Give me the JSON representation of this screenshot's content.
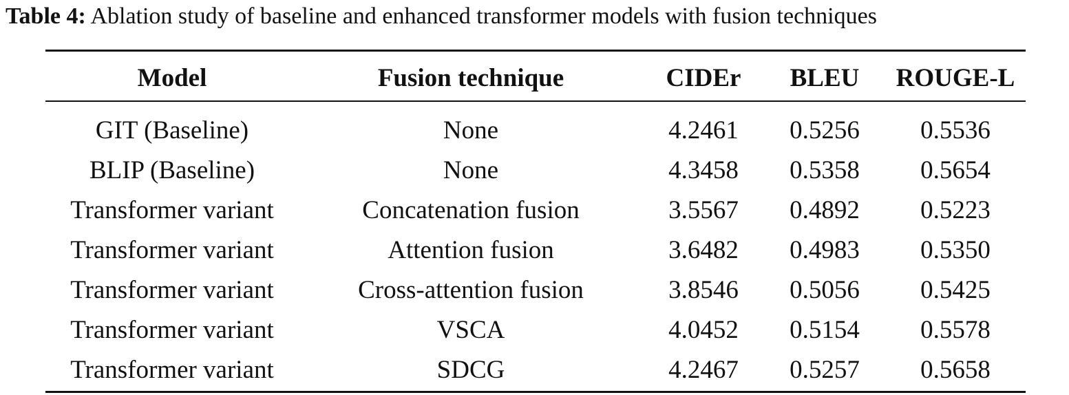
{
  "caption": {
    "label": "Table 4:",
    "text": "Ablation study of baseline and enhanced transformer models with fusion techniques"
  },
  "table": {
    "headers": [
      "Model",
      "Fusion technique",
      "CIDEr",
      "BLEU",
      "ROUGE-L"
    ],
    "rows": [
      [
        "GIT (Baseline)",
        "None",
        "4.2461",
        "0.5256",
        "0.5536"
      ],
      [
        "BLIP (Baseline)",
        "None",
        "4.3458",
        "0.5358",
        "0.5654"
      ],
      [
        "Transformer variant",
        "Concatenation fusion",
        "3.5567",
        "0.4892",
        "0.5223"
      ],
      [
        "Transformer variant",
        "Attention fusion",
        "3.6482",
        "0.4983",
        "0.5350"
      ],
      [
        "Transformer variant",
        "Cross-attention fusion",
        "3.8546",
        "0.5056",
        "0.5425"
      ],
      [
        "Transformer variant",
        "VSCA",
        "4.0452",
        "0.5154",
        "0.5578"
      ],
      [
        "Transformer variant",
        "SDCG",
        "4.2467",
        "0.5257",
        "0.5658"
      ]
    ]
  }
}
